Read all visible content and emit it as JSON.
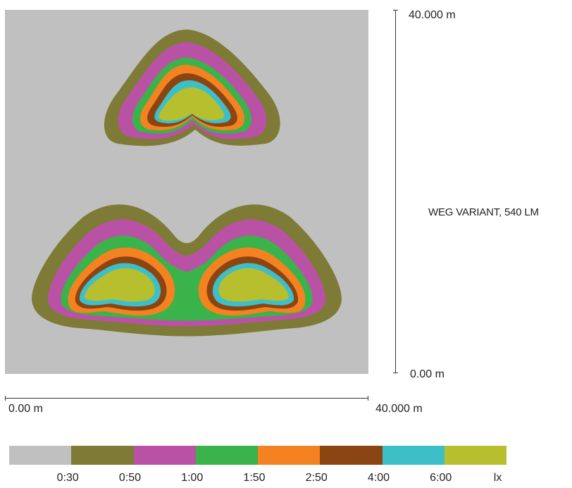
{
  "plot": {
    "title": "WEG VARIANT, 540 LM",
    "y_axis": {
      "top_label": "40.000 m",
      "bottom_label": "0.00 m"
    },
    "x_axis": {
      "left_label": "0.00 m",
      "right_label": "40.000 m"
    },
    "background_color": "#c0c0c0"
  },
  "legend": {
    "colors": [
      "#c0c0c0",
      "#7d7b36",
      "#b952a4",
      "#39b34a",
      "#f58220",
      "#8b4512",
      "#3dbfc8",
      "#b8bf2f"
    ],
    "ticks": [
      "0:30",
      "0:50",
      "1:00",
      "1:50",
      "2:50",
      "4:00",
      "6:00",
      "lx"
    ]
  }
}
